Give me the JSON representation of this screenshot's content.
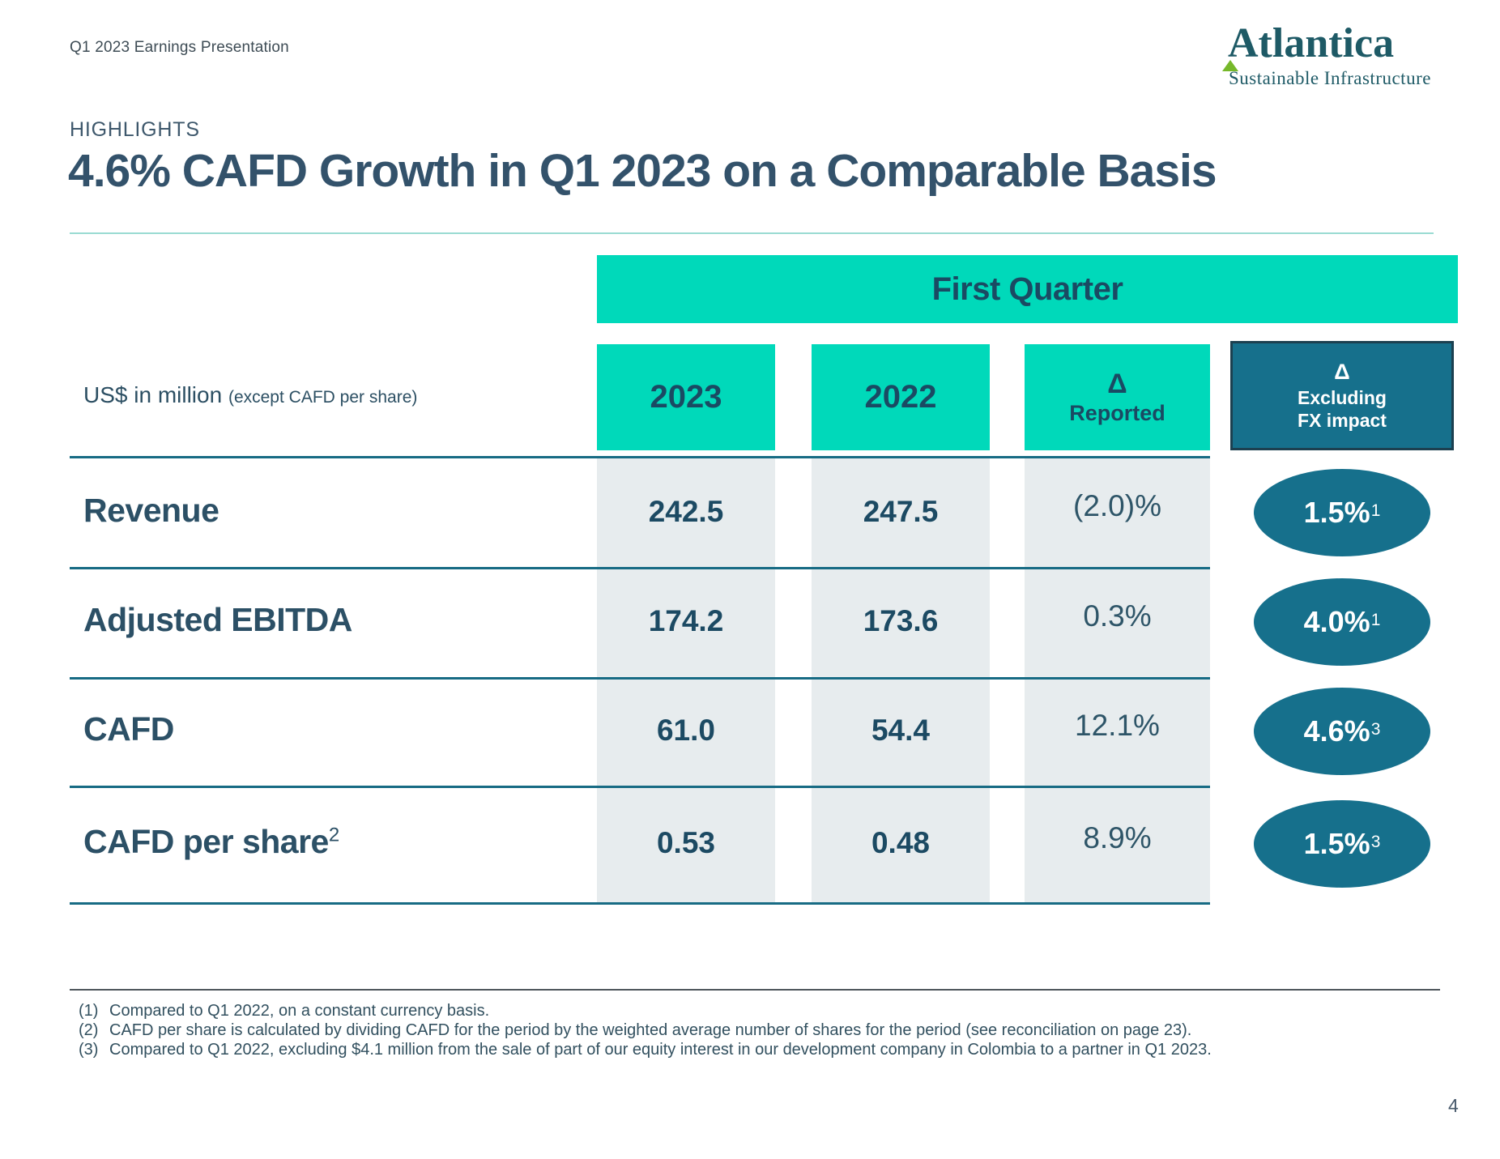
{
  "header": {
    "deck_title": "Q1 2023 Earnings Presentation"
  },
  "logo": {
    "brand": "Atlantica",
    "tagline": "Sustainable Infrastructure",
    "triangle_color": "#76B82A",
    "brand_color": "#1E5A66"
  },
  "eyebrow": "HIGHLIGHTS",
  "title": "4.6% CAFD Growth in Q1 2023 on a Comparable Basis",
  "table": {
    "group_header": "First Quarter",
    "unit_label": "US$ in million",
    "unit_label_note": "(except CAFD per share)",
    "columns": {
      "col_2023": "2023",
      "col_2022": "2022",
      "delta_symbol": "Δ",
      "delta_label": "Reported",
      "fx_symbol": "Δ",
      "fx_line1": "Excluding",
      "fx_line2": "FX impact"
    },
    "rows": [
      {
        "label": "Revenue",
        "label_note": "",
        "v2023": "242.5",
        "v2022": "247.5",
        "delta": "(2.0)%",
        "fx": "1.5%",
        "fx_note": "1"
      },
      {
        "label": "Adjusted EBITDA",
        "label_note": "",
        "v2023": "174.2",
        "v2022": "173.6",
        "delta": "0.3%",
        "fx": "4.0%",
        "fx_note": "1"
      },
      {
        "label": "CAFD",
        "label_note": "",
        "v2023": "61.0",
        "v2022": "54.4",
        "delta": "12.1%",
        "fx": "4.6%",
        "fx_note": "3"
      },
      {
        "label": "CAFD per share",
        "label_note": "2",
        "v2023": "0.53",
        "v2022": "0.48",
        "delta": "8.9%",
        "fx": "1.5%",
        "fx_note": "3"
      }
    ]
  },
  "footnotes": [
    {
      "num": "(1)",
      "text": "Compared to Q1 2022, on a constant currency basis."
    },
    {
      "num": "(2)",
      "text": "CAFD per share is calculated by dividing CAFD for the period by the weighted average number of shares for the period (see reconciliation on page 23)."
    },
    {
      "num": "(3)",
      "text": "Compared to Q1 2022, excluding $4.1 million from the sale of part of our equity interest in our development company in Colombia to a partner in Q1 2023."
    }
  ],
  "page_number": "4",
  "colors": {
    "teal": "#00D9BA",
    "dark_teal": "#16708C",
    "text_dark": "#1C4A63",
    "gray_column": "#E7ECEE",
    "separator_line": "#176B84",
    "title": "#33526B"
  }
}
